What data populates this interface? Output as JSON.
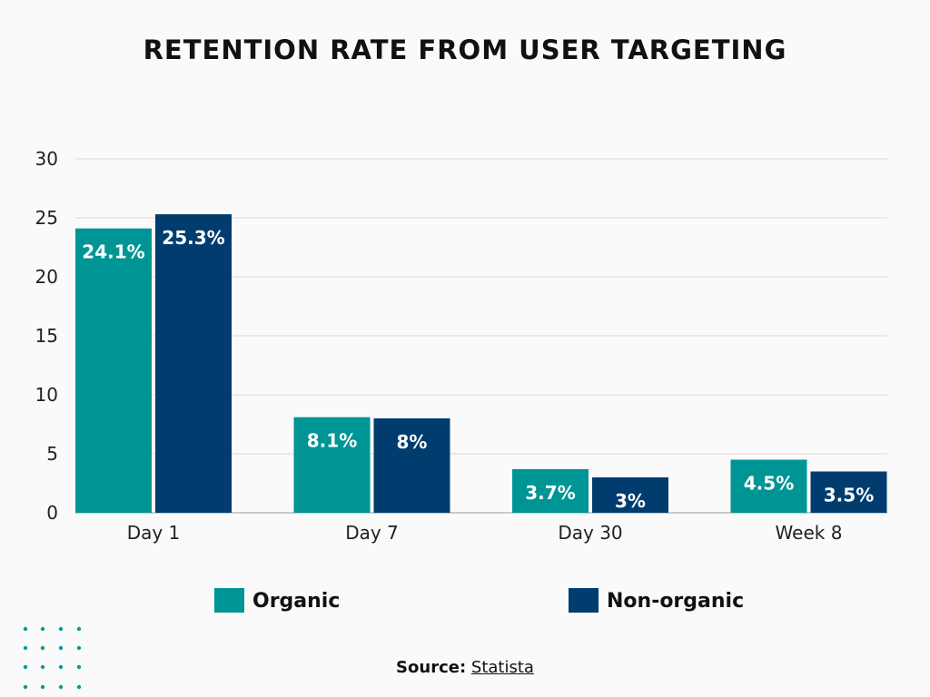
{
  "chart_data": {
    "type": "bar",
    "title": "RETENTION RATE FROM USER TARGETING",
    "categories": [
      "Day 1",
      "Day 7",
      "Day 30",
      "Week 8"
    ],
    "series": [
      {
        "name": "Organic",
        "color": "#009595",
        "values": [
          24.1,
          8.1,
          3.7,
          4.5
        ],
        "labels": [
          "24.1%",
          "8.1%",
          "3.7%",
          "4.5%"
        ]
      },
      {
        "name": "Non-organic",
        "color": "#003d6e",
        "values": [
          25.3,
          8,
          3,
          3.5
        ],
        "labels": [
          "25.3%",
          "8%",
          "3%",
          "3.5%"
        ]
      }
    ],
    "ylim": [
      0,
      30
    ],
    "yticks": [
      0,
      5,
      10,
      15,
      20,
      25,
      30
    ],
    "grid": true,
    "legend": "bottom"
  },
  "source": {
    "label": "Source:",
    "link": "Statista"
  },
  "decor_color": "#0a9a9a"
}
